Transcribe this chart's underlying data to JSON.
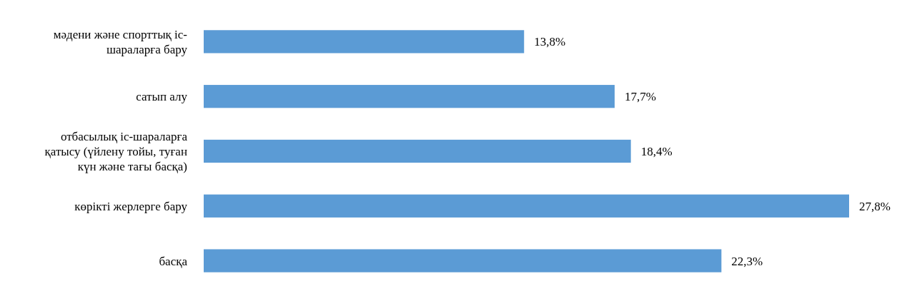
{
  "chart_data": {
    "type": "bar",
    "orientation": "horizontal",
    "categories": [
      "мәдени және спорттық іс-шараларға бару",
      "сатып алу",
      "отбасылық іс-шараларға қатысу (үйлену тойы, туған күн және тағы басқа)",
      "көрікті жерлерге бару",
      "басқа"
    ],
    "values": [
      13.8,
      17.7,
      18.4,
      27.8,
      22.3
    ],
    "value_labels": [
      "13,8%",
      "17,7%",
      "18,4%",
      "27,8%",
      "22,3%"
    ],
    "color": "#5b9bd5"
  }
}
